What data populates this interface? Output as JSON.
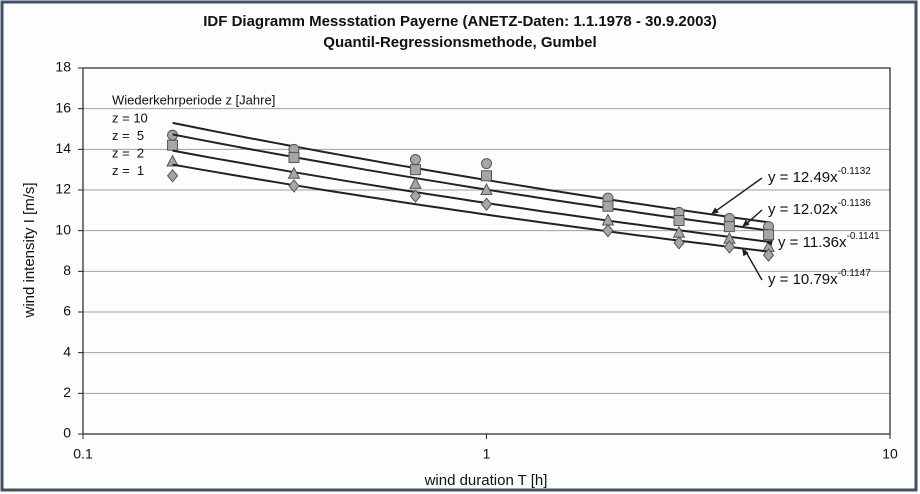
{
  "chart_data": {
    "type": "scatter",
    "title": "IDF Diagramm Messstation Payerne (ANETZ-Daten: 1.1.1978 - 30.9.2003)",
    "subtitle": "Quantil-Regressionsmethode, Gumbel",
    "x_label": "wind duration T [h]",
    "y_label": "wind intensity I [m/s]",
    "legend_title": "Wiederkehrperiode z [Jahre]",
    "x_scale": "log",
    "xlim": [
      0.1,
      10
    ],
    "xticks": [
      0.1,
      1,
      10
    ],
    "ylim": [
      0,
      18
    ],
    "yticks": [
      0,
      2,
      4,
      6,
      8,
      10,
      12,
      14,
      16,
      18
    ],
    "grid": true,
    "x": [
      0.1667,
      0.3333,
      0.6667,
      1,
      2,
      3,
      4,
      5
    ],
    "series": [
      {
        "name": "z = 10",
        "marker": "circle",
        "color": "#a6a6a6",
        "values": [
          14.7,
          14.0,
          13.5,
          13.3,
          11.6,
          10.9,
          10.6,
          10.2
        ],
        "fit": {
          "coef": 12.49,
          "exponent": -0.1132,
          "label": "y = 12.49x",
          "exponent_label": "-0.1132"
        }
      },
      {
        "name": "z =  5",
        "marker": "square",
        "color": "#a6a6a6",
        "values": [
          14.2,
          13.6,
          13.0,
          12.7,
          11.2,
          10.5,
          10.2,
          9.8
        ],
        "fit": {
          "coef": 12.02,
          "exponent": -0.1136,
          "label": "y = 12.02x",
          "exponent_label": "-0.1136"
        }
      },
      {
        "name": "z =  2",
        "marker": "triangle",
        "color": "#a6a6a6",
        "values": [
          13.4,
          12.8,
          12.3,
          12.0,
          10.5,
          9.9,
          9.6,
          9.2
        ],
        "fit": {
          "coef": 11.36,
          "exponent": -0.1141,
          "label": "y = 11.36x",
          "exponent_label": "-0.1141"
        }
      },
      {
        "name": "z =  1",
        "marker": "diamond",
        "color": "#a6a6a6",
        "values": [
          12.7,
          12.2,
          11.7,
          11.3,
          10.0,
          9.4,
          9.2,
          8.8
        ],
        "fit": {
          "coef": 10.79,
          "exponent": -0.1147,
          "label": "y = 10.79x",
          "exponent_label": "-0.1147"
        }
      }
    ]
  }
}
